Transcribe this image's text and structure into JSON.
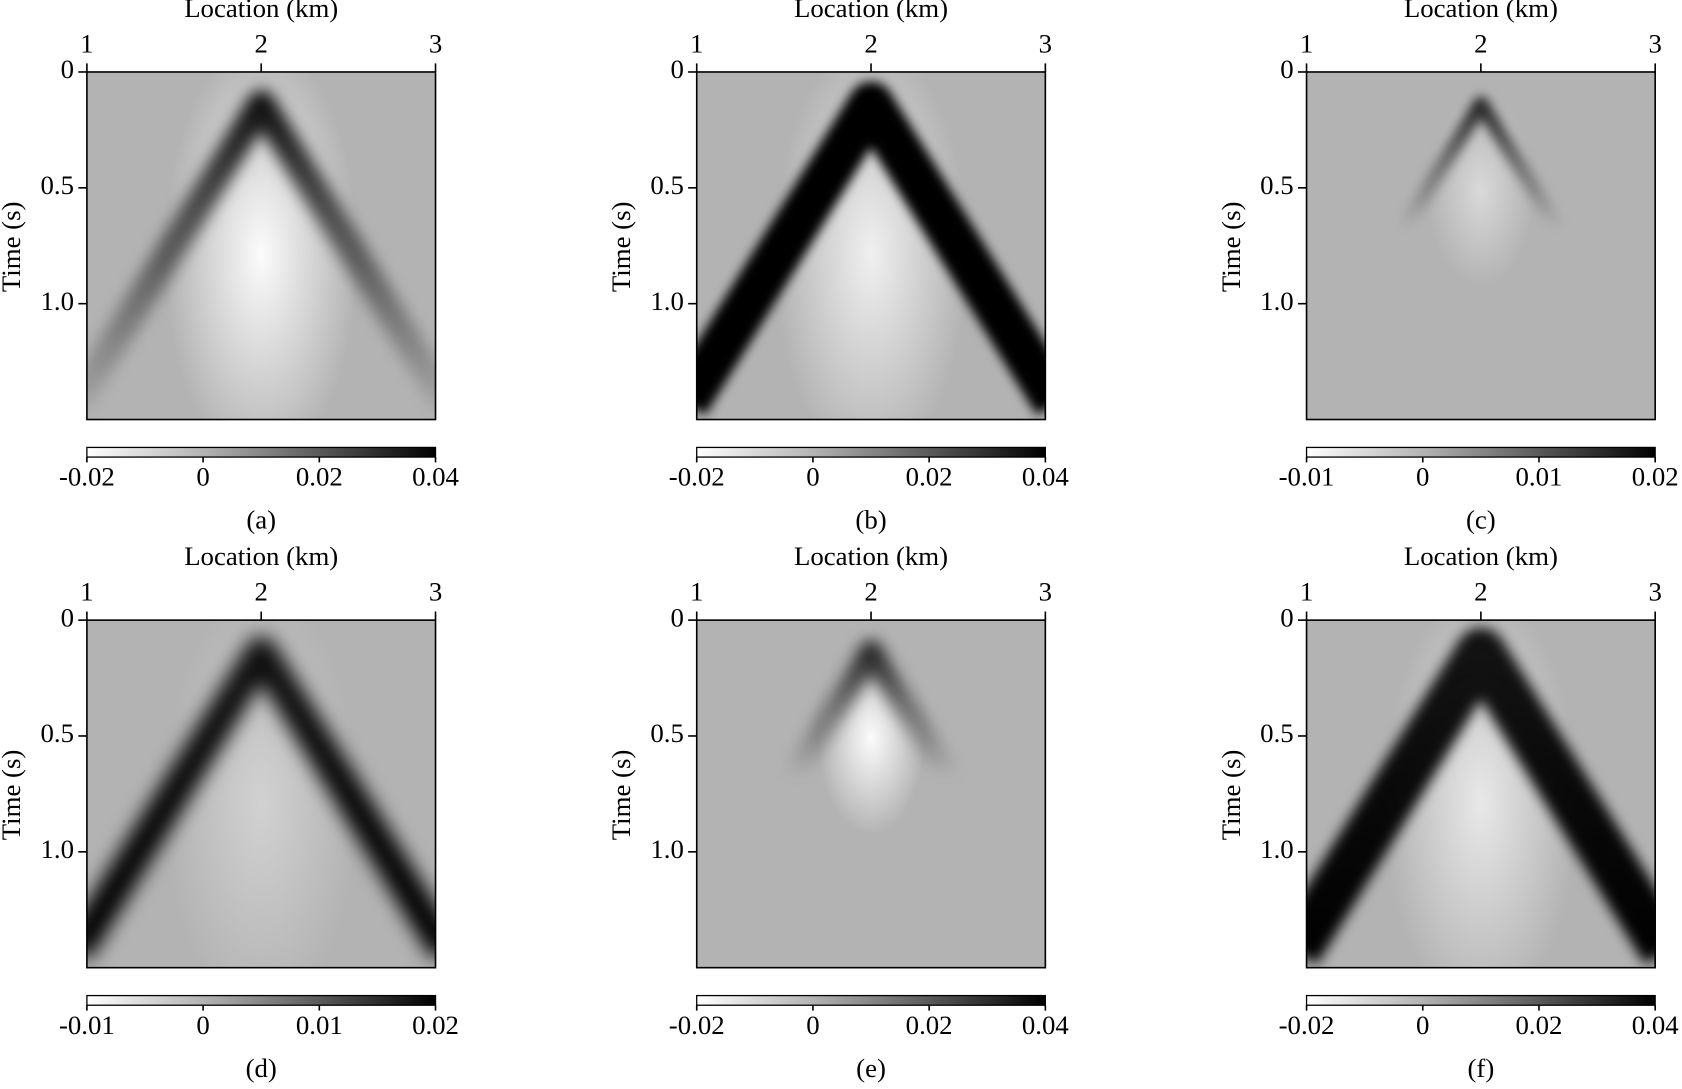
{
  "chart_data": [
    {
      "type": "heatmap",
      "caption": "(a)",
      "x_label": "Location (km)",
      "y_label": "Time (s)",
      "xlim": [
        1,
        3
      ],
      "xticks": [
        1,
        2,
        3
      ],
      "ylim": [
        0,
        1.5
      ],
      "y_inverted": true,
      "yticks": [
        0,
        0.5,
        {
          "value": 1,
          "label": "1.0"
        }
      ],
      "colorbar_lim": [
        -0.02,
        0.04
      ],
      "colorbar_ticks": [
        -0.02,
        0,
        0.02,
        0.04
      ],
      "colormap": [
        "#ffffff",
        "#b3b3b3",
        "#000000"
      ]
    },
    {
      "type": "heatmap",
      "caption": "(b)",
      "x_label": "Location (km)",
      "y_label": "Time (s)",
      "xlim": [
        1,
        3
      ],
      "xticks": [
        1,
        2,
        3
      ],
      "ylim": [
        0,
        1.5
      ],
      "y_inverted": true,
      "yticks": [
        0,
        0.5,
        {
          "value": 1,
          "label": "1.0"
        }
      ],
      "colorbar_lim": [
        -0.02,
        0.04
      ],
      "colorbar_ticks": [
        -0.02,
        0,
        0.02,
        0.04
      ],
      "colormap": [
        "#ffffff",
        "#b3b3b3",
        "#000000"
      ]
    },
    {
      "type": "heatmap",
      "caption": "(c)",
      "x_label": "Location (km)",
      "y_label": "Time (s)",
      "xlim": [
        1,
        3
      ],
      "xticks": [
        1,
        2,
        3
      ],
      "ylim": [
        0,
        1.5
      ],
      "y_inverted": true,
      "yticks": [
        0,
        0.5,
        {
          "value": 1,
          "label": "1.0"
        }
      ],
      "colorbar_lim": [
        -0.01,
        0.02
      ],
      "colorbar_ticks": [
        -0.01,
        0,
        0.01,
        0.02
      ],
      "colormap": [
        "#ffffff",
        "#b3b3b3",
        "#000000"
      ]
    },
    {
      "type": "heatmap",
      "caption": "(d)",
      "x_label": "Location (km)",
      "y_label": "Time (s)",
      "xlim": [
        1,
        3
      ],
      "xticks": [
        1,
        2,
        3
      ],
      "ylim": [
        0,
        1.5
      ],
      "y_inverted": true,
      "yticks": [
        0,
        0.5,
        {
          "value": 1,
          "label": "1.0"
        }
      ],
      "colorbar_lim": [
        -0.01,
        0.02
      ],
      "colorbar_ticks": [
        -0.01,
        0,
        0.01,
        0.02
      ],
      "colormap": [
        "#ffffff",
        "#b3b3b3",
        "#000000"
      ]
    },
    {
      "type": "heatmap",
      "caption": "(e)",
      "x_label": "Location (km)",
      "y_label": "Time (s)",
      "xlim": [
        1,
        3
      ],
      "xticks": [
        1,
        2,
        3
      ],
      "ylim": [
        0,
        1.5
      ],
      "y_inverted": true,
      "yticks": [
        0,
        0.5,
        {
          "value": 1,
          "label": "1.0"
        }
      ],
      "colorbar_lim": [
        -0.02,
        0.04
      ],
      "colorbar_ticks": [
        -0.02,
        0,
        0.02,
        0.04
      ],
      "colormap": [
        "#ffffff",
        "#b3b3b3",
        "#000000"
      ]
    },
    {
      "type": "heatmap",
      "caption": "(f)",
      "x_label": "Location (km)",
      "y_label": "Time (s)",
      "xlim": [
        1,
        3
      ],
      "xticks": [
        1,
        2,
        3
      ],
      "ylim": [
        0,
        1.5
      ],
      "y_inverted": true,
      "yticks": [
        0,
        0.5,
        {
          "value": 1,
          "label": "1.0"
        }
      ],
      "colorbar_lim": [
        -0.02,
        0.04
      ],
      "colorbar_ticks": [
        -0.02,
        0,
        0.02,
        0.04
      ],
      "colormap": [
        "#ffffff",
        "#b3b3b3",
        "#000000"
      ]
    }
  ]
}
